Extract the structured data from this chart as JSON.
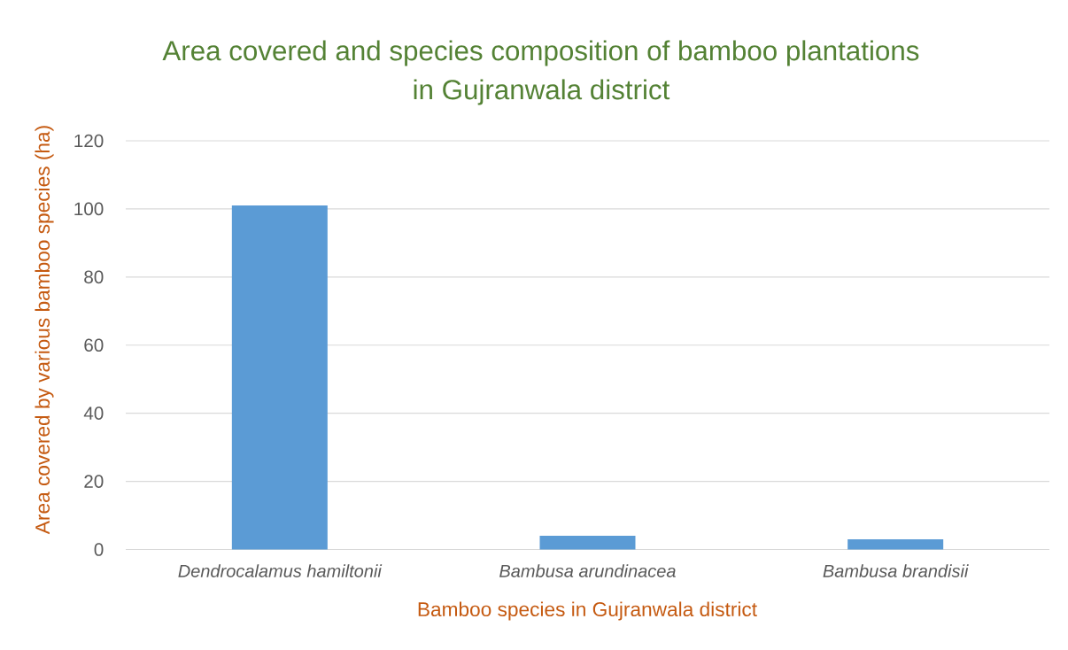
{
  "chart_data": {
    "type": "bar",
    "title": "Area covered and species composition of bamboo plantations in Gujranwala district",
    "xlabel": "Bamboo species in Gujranwala district",
    "ylabel": "Area covered by various bamboo species (ha)",
    "categories": [
      "Dendrocalamus hamiltonii",
      "Bambusa arundinacea",
      "Bambusa brandisii"
    ],
    "values": [
      101,
      4,
      3
    ],
    "color": "#5b9bd5",
    "ylim": [
      0,
      120
    ],
    "yticks": [
      0,
      20,
      40,
      60,
      80,
      100,
      120
    ],
    "grid": "y"
  }
}
